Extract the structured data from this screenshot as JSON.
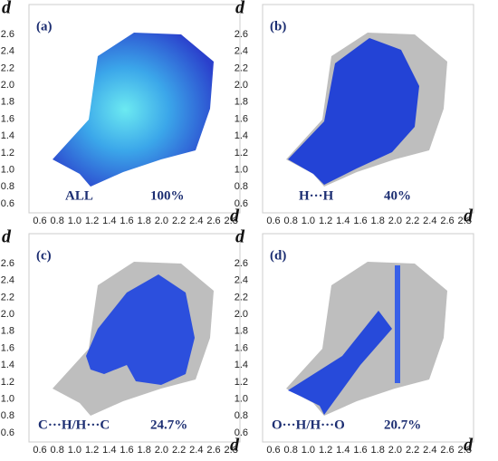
{
  "panels": [
    {
      "label": "(a)",
      "contact": "ALL",
      "percent": "100%",
      "mode": "all"
    },
    {
      "label": "(b)",
      "contact": "H···H",
      "percent": "40%",
      "mode": "hh"
    },
    {
      "label": "(c)",
      "contact": "C···H/H···C",
      "percent": "24.7%",
      "mode": "ch"
    },
    {
      "label": "(d)",
      "contact": "O···H/H···O",
      "percent": "20.7%",
      "mode": "oh"
    }
  ],
  "axis_letter": "d",
  "xticks": [
    "0.6",
    "0.8",
    "1.0",
    "1.2",
    "1.4",
    "1.6",
    "1.8",
    "2.0",
    "2.2",
    "2.4",
    "2.6",
    "2.8"
  ],
  "yticks": [
    "2.6",
    "2.4",
    "2.2",
    "2.0",
    "1.8",
    "1.6",
    "1.4",
    "1.2",
    "1.0",
    "0.8",
    "0.6"
  ]
}
